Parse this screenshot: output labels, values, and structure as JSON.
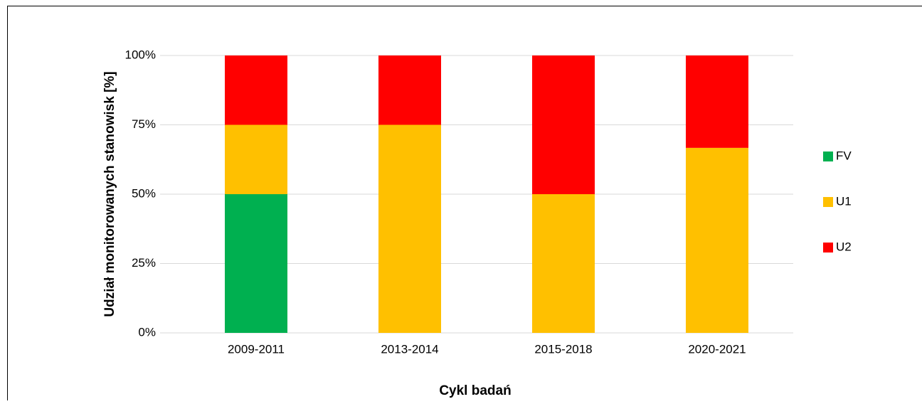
{
  "chart_data": {
    "type": "stacked_bar",
    "xlabel": "Cykl badań",
    "ylabel": "Udział monitorowanych stanowisk [%]",
    "categories": [
      "2009-2011",
      "2013-2014",
      "2015-2018",
      "2020-2021"
    ],
    "series": [
      {
        "name": "FV",
        "color": "#00b050",
        "values": [
          50,
          0,
          0,
          0
        ]
      },
      {
        "name": "U1",
        "color": "#ffc000",
        "values": [
          25,
          75,
          50,
          66.7
        ]
      },
      {
        "name": "U2",
        "color": "#ff0000",
        "values": [
          25,
          25,
          50,
          33.3
        ]
      }
    ],
    "ylim": [
      0,
      100
    ],
    "yticks": [
      {
        "value": 0,
        "label": "0%"
      },
      {
        "value": 25,
        "label": "25%"
      },
      {
        "value": 50,
        "label": "50%"
      },
      {
        "value": 75,
        "label": "75%"
      },
      {
        "value": 100,
        "label": "100%"
      }
    ],
    "grid": true,
    "legend": "right"
  }
}
